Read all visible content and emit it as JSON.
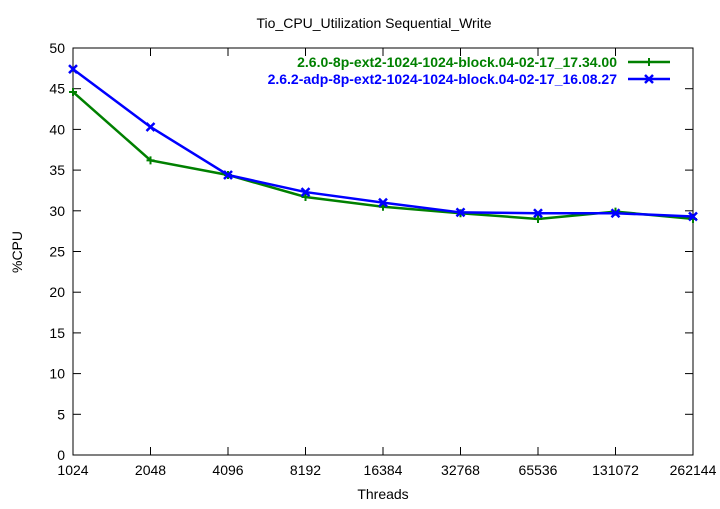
{
  "chart_data": {
    "type": "line",
    "title": "Tio_CPU_Utilization Sequential_Write",
    "xlabel": "Threads",
    "ylabel": "%CPU",
    "x_scale": "log2",
    "categories": [
      "1024",
      "2048",
      "4096",
      "8192",
      "16384",
      "32768",
      "65536",
      "131072",
      "262144"
    ],
    "ylim": [
      0,
      50
    ],
    "yticks": [
      "0",
      "5",
      "10",
      "15",
      "20",
      "25",
      "30",
      "35",
      "40",
      "45",
      "50"
    ],
    "grid": false,
    "legend_position": "top-right",
    "series": [
      {
        "name": "2.6.0-8p-ext2-1024-1024-block.04-02-17_17.34.00",
        "color": "#008000",
        "marker": "plus",
        "values": [
          44.6,
          36.2,
          34.4,
          31.7,
          30.5,
          29.7,
          29.0,
          29.9,
          29.0
        ]
      },
      {
        "name": "2.6.2-adp-8p-ext2-1024-1024-block.04-02-17_16.08.27",
        "color": "#0000ff",
        "marker": "cross",
        "values": [
          47.4,
          40.3,
          34.4,
          32.3,
          31.0,
          29.8,
          29.7,
          29.7,
          29.3
        ]
      }
    ]
  }
}
